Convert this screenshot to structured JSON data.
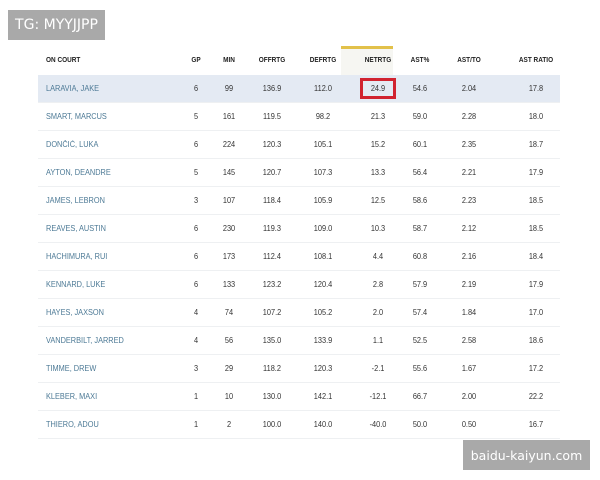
{
  "watermarks": {
    "top_left": "TG: MYYJJPP",
    "bottom_right": "baidu-kaiyun.com"
  },
  "colors": {
    "highlight_box": "#d1232f",
    "sort_indicator": "#e2c14a",
    "name_link": "#4d7a96",
    "selected_row": "#e4eaf3"
  },
  "table": {
    "sorted_column": "NETRTG",
    "headers": [
      "ON COURT",
      "GP",
      "MIN",
      "OFFRTG",
      "DEFRTG",
      "NETRTG",
      "AST%",
      "AST/TO",
      "AST RATIO"
    ],
    "rows": [
      [
        "LARAVIA, JAKE",
        "6",
        "99",
        "136.9",
        "112.0",
        "24.9",
        "54.6",
        "2.04",
        "17.8"
      ],
      [
        "SMART, MARCUS",
        "5",
        "161",
        "119.5",
        "98.2",
        "21.3",
        "59.0",
        "2.28",
        "18.0"
      ],
      [
        "DONČIĆ, LUKA",
        "6",
        "224",
        "120.3",
        "105.1",
        "15.2",
        "60.1",
        "2.35",
        "18.7"
      ],
      [
        "AYTON, DEANDRE",
        "5",
        "145",
        "120.7",
        "107.3",
        "13.3",
        "56.4",
        "2.21",
        "17.9"
      ],
      [
        "JAMES, LEBRON",
        "3",
        "107",
        "118.4",
        "105.9",
        "12.5",
        "58.6",
        "2.23",
        "18.5"
      ],
      [
        "REAVES, AUSTIN",
        "6",
        "230",
        "119.3",
        "109.0",
        "10.3",
        "58.7",
        "2.12",
        "18.5"
      ],
      [
        "HACHIMURA, RUI",
        "6",
        "173",
        "112.4",
        "108.1",
        "4.4",
        "60.8",
        "2.16",
        "18.4"
      ],
      [
        "KENNARD, LUKE",
        "6",
        "133",
        "123.2",
        "120.4",
        "2.8",
        "57.9",
        "2.19",
        "17.9"
      ],
      [
        "HAYES, JAXSON",
        "4",
        "74",
        "107.2",
        "105.2",
        "2.0",
        "57.4",
        "1.84",
        "17.0"
      ],
      [
        "VANDERBILT, JARRED",
        "4",
        "56",
        "135.0",
        "133.9",
        "1.1",
        "52.5",
        "2.58",
        "18.6"
      ],
      [
        "TIMME, DREW",
        "3",
        "29",
        "118.2",
        "120.3",
        "-2.1",
        "55.6",
        "1.67",
        "17.2"
      ],
      [
        "KLEBER, MAXI",
        "1",
        "10",
        "130.0",
        "142.1",
        "-12.1",
        "66.7",
        "2.00",
        "22.2"
      ],
      [
        "THIERO, ADOU",
        "1",
        "2",
        "100.0",
        "140.0",
        "-40.0",
        "50.0",
        "0.50",
        "16.7"
      ]
    ]
  }
}
